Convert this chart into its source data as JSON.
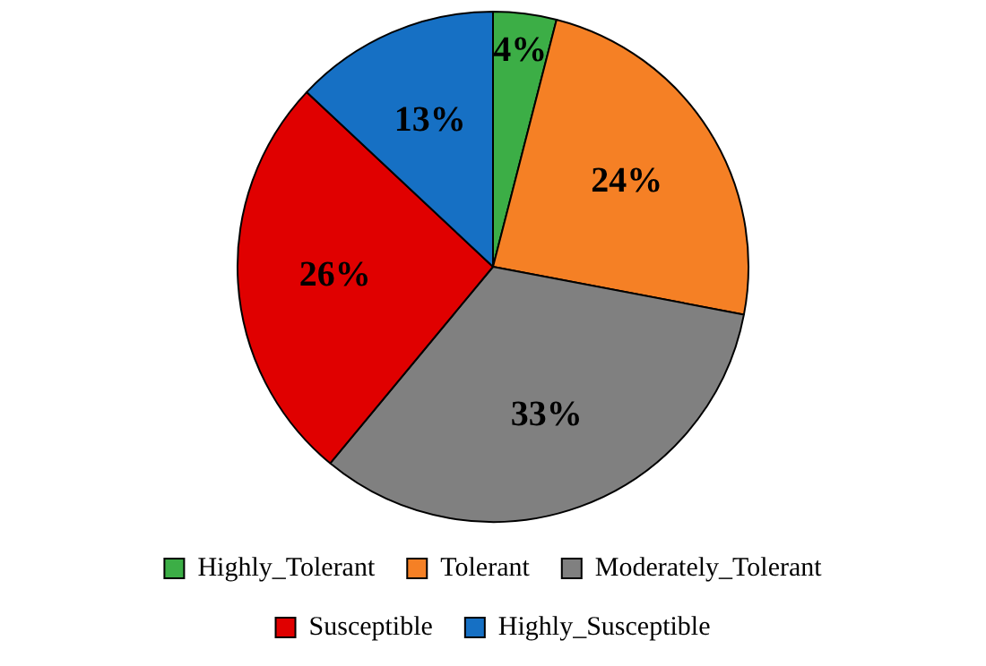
{
  "chart_data": {
    "type": "pie",
    "categories": [
      "Highly_Tolerant",
      "Tolerant",
      "Moderately_Tolerant",
      "Susceptible",
      "Highly_Susceptible"
    ],
    "values": [
      4,
      24,
      33,
      26,
      13
    ],
    "colors": [
      "#3cae46",
      "#f58025",
      "#808080",
      "#e00000",
      "#1670c4"
    ],
    "value_labels": [
      "4%",
      "24%",
      "33%",
      "26%",
      "13%"
    ],
    "legend": "bottom"
  }
}
